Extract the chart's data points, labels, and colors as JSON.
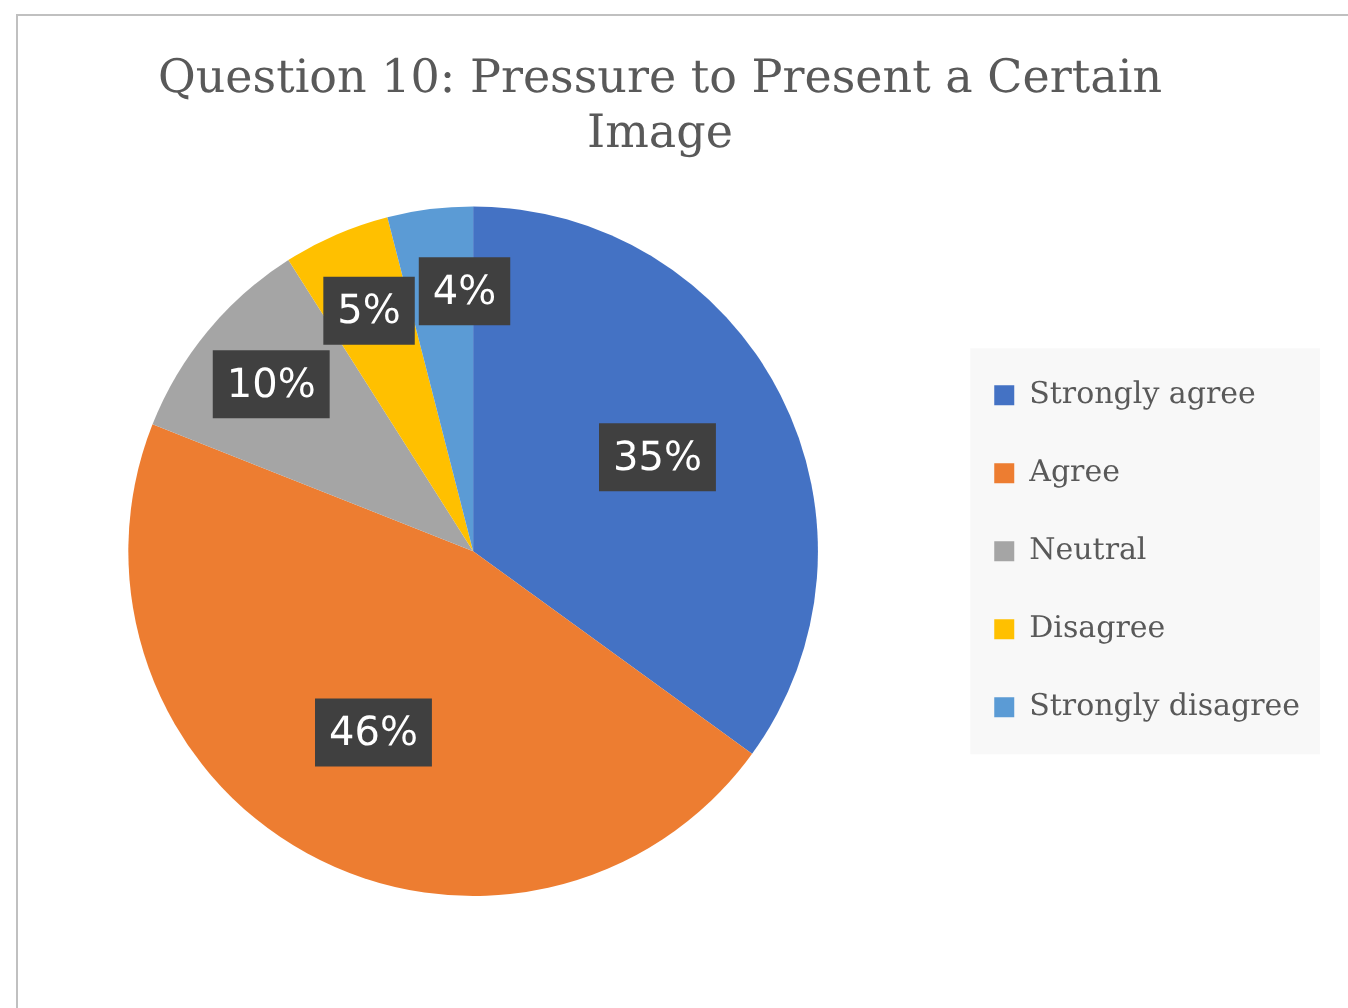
{
  "chart_data": {
    "type": "pie",
    "title": "Question 10: Pressure to Present a Certain Image",
    "categories": [
      "Strongly agree",
      "Agree",
      "Neutral",
      "Disagree",
      "Strongly disagree"
    ],
    "values": [
      35,
      46,
      10,
      5,
      4
    ],
    "colors": [
      "#4472c4",
      "#ed7d31",
      "#a5a5a5",
      "#ffc000",
      "#5b9bd5"
    ],
    "value_labels": [
      "35%",
      "46%",
      "10%",
      "5%",
      "4%"
    ],
    "legend": "right"
  }
}
